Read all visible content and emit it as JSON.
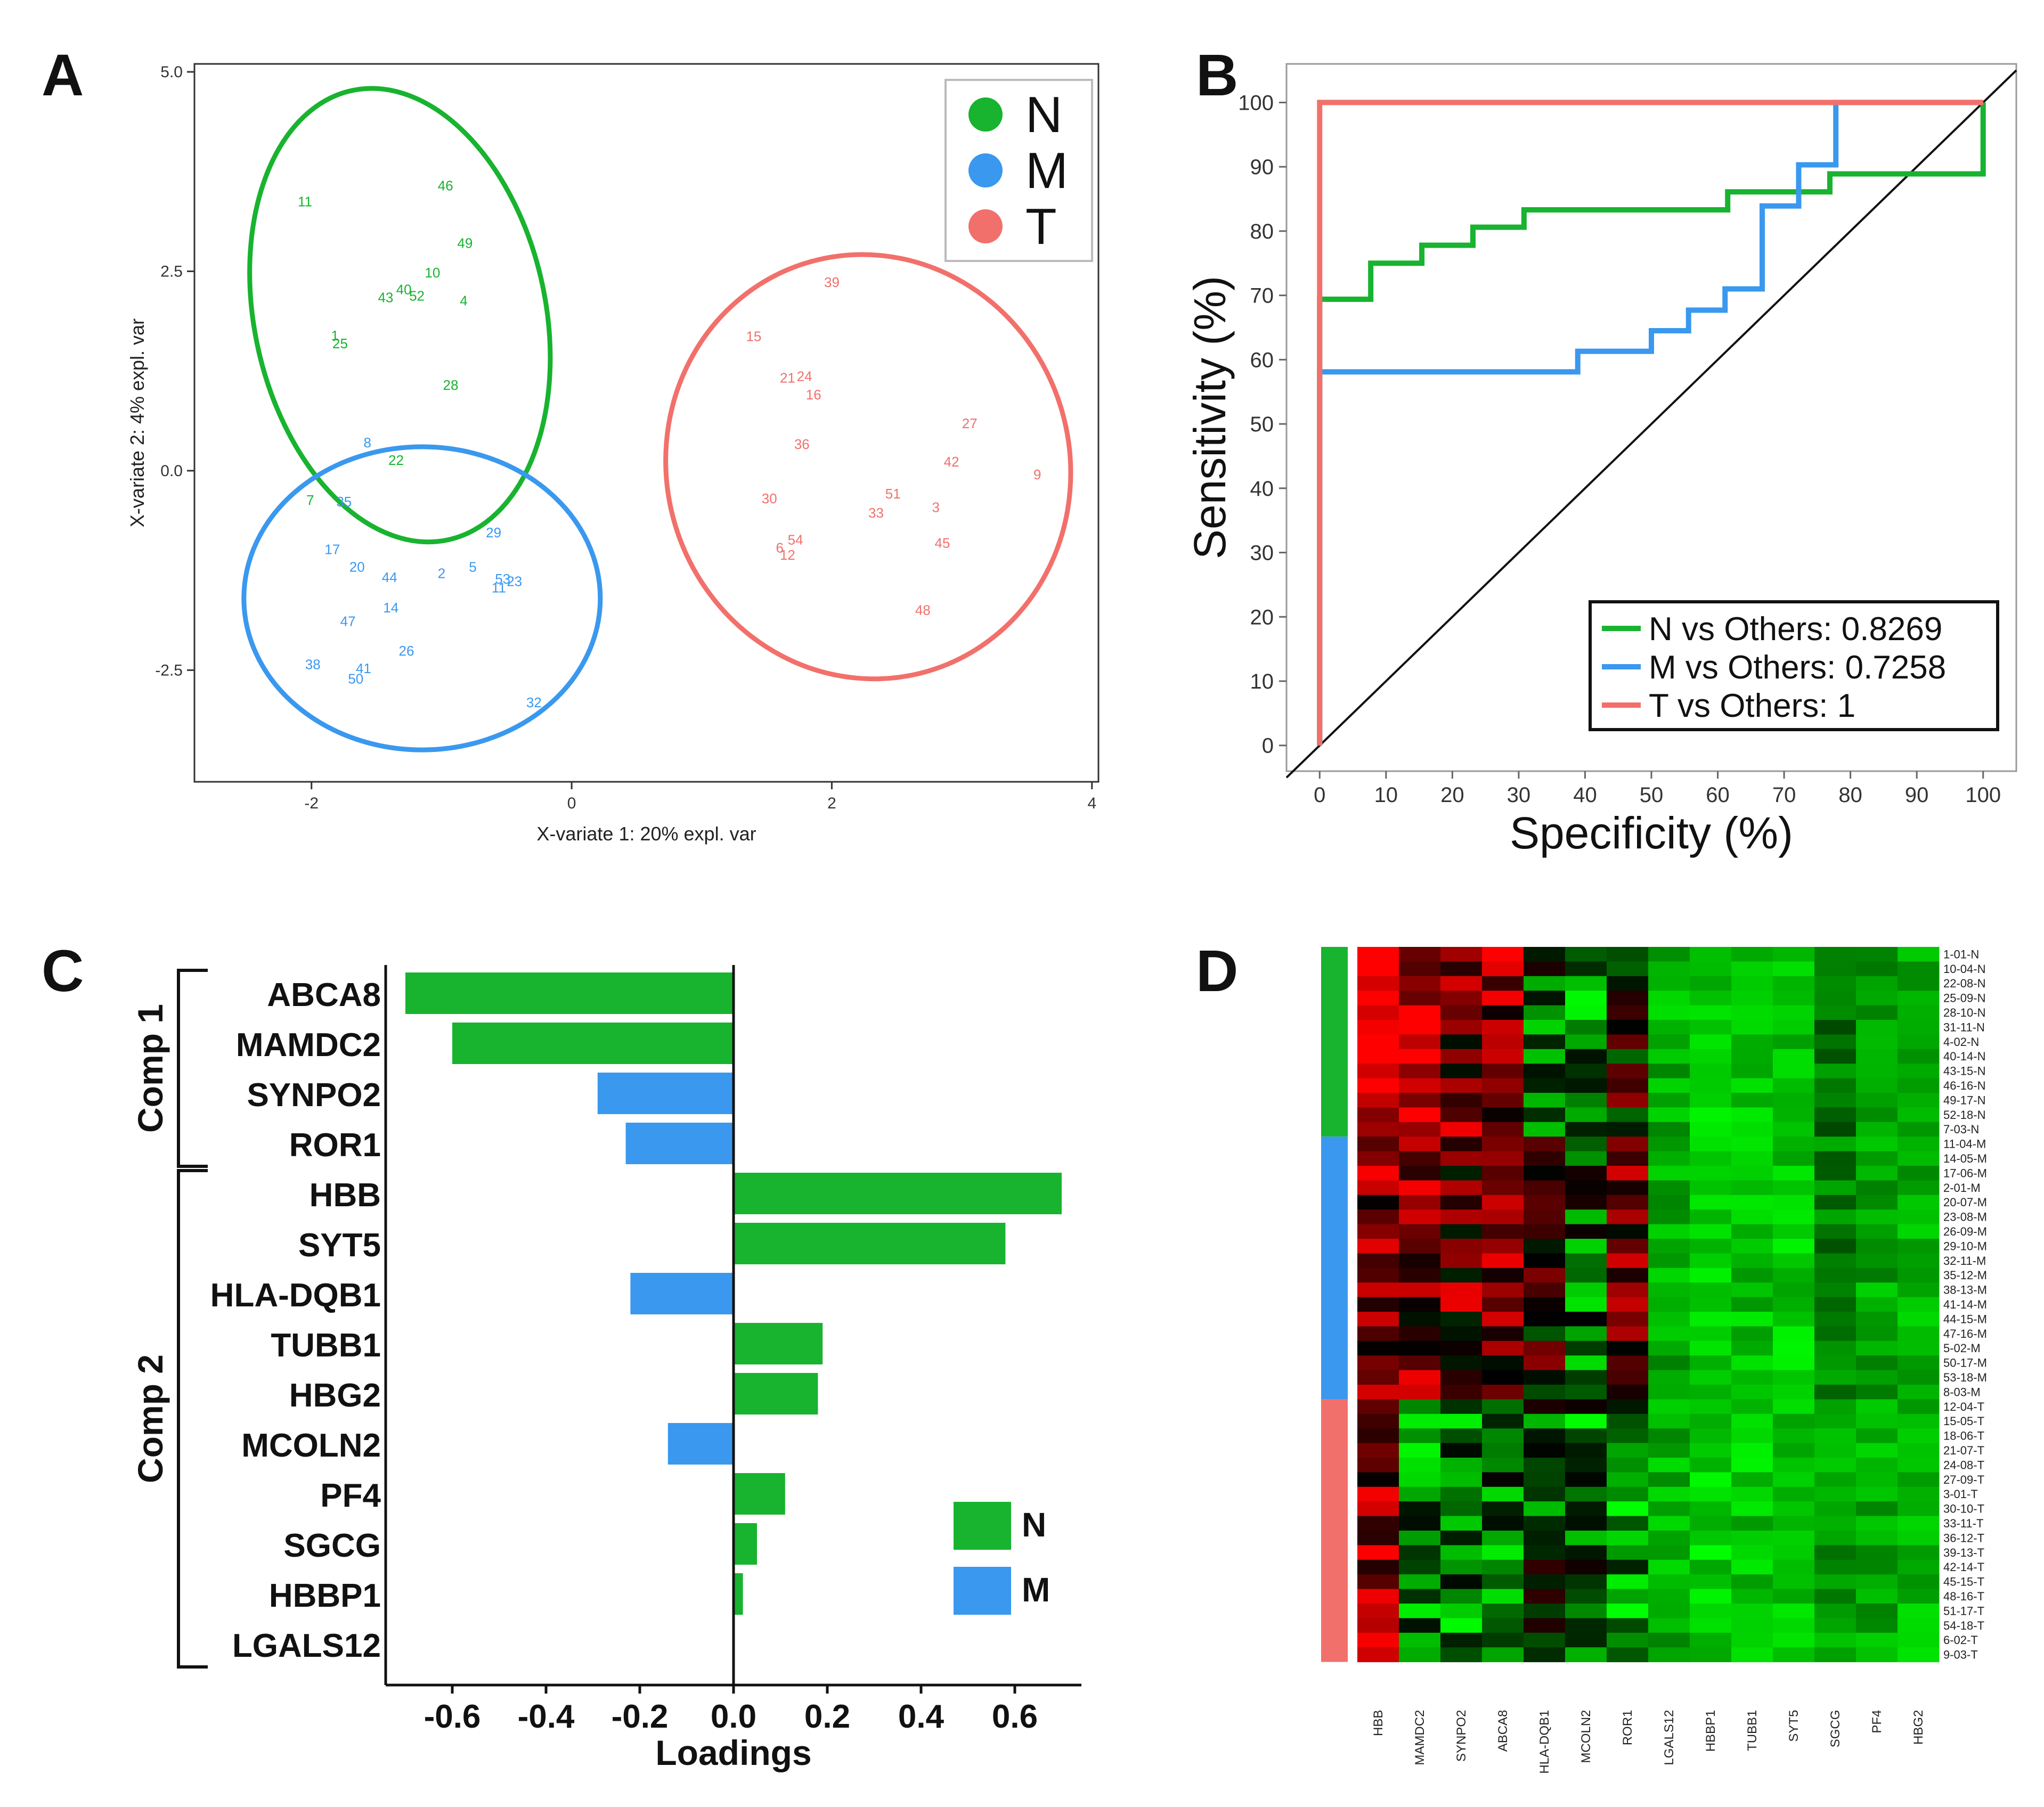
{
  "panels": {
    "a": "A",
    "b": "B",
    "c": "C",
    "d": "D"
  },
  "chart_data": [
    {
      "type": "scatter",
      "panel": "A",
      "xlabel": "X-variate 1: 20% expl. var",
      "ylabel": "X-variate 2: 4% expl. var",
      "xlim": [
        -2.9,
        4.05
      ],
      "ylim": [
        -3.9,
        5.1
      ],
      "xticks": [
        "-2",
        "0",
        "2",
        "4"
      ],
      "yticks": [
        "-2.5",
        "0.0",
        "2.5",
        "5.0"
      ],
      "legend": [
        {
          "label": "N",
          "color": "#18b32f"
        },
        {
          "label": "M",
          "color": "#3a98ef"
        },
        {
          "label": "T",
          "color": "#f2706b"
        }
      ],
      "ellipses": [
        {
          "group": "N",
          "cx": -1.32,
          "cy": 1.95,
          "rx": 1.12,
          "ry": 2.88,
          "angle": -12
        },
        {
          "group": "M",
          "cx": -1.15,
          "cy": -1.6,
          "rx": 1.37,
          "ry": 1.9,
          "angle": 0
        },
        {
          "group": "T",
          "cx": 2.28,
          "cy": 0.05,
          "rx": 1.55,
          "ry": 2.67,
          "angle": -16
        }
      ],
      "points": [
        {
          "label": "11",
          "x": -2.05,
          "y": 3.38,
          "group": "N"
        },
        {
          "label": "46",
          "x": -0.97,
          "y": 3.58,
          "group": "N"
        },
        {
          "label": "49",
          "x": -0.82,
          "y": 2.86,
          "group": "N"
        },
        {
          "label": "10",
          "x": -1.07,
          "y": 2.49,
          "group": "N"
        },
        {
          "label": "40",
          "x": -1.29,
          "y": 2.28,
          "group": "N"
        },
        {
          "label": "52",
          "x": -1.19,
          "y": 2.2,
          "group": "N"
        },
        {
          "label": "43",
          "x": -1.43,
          "y": 2.18,
          "group": "N"
        },
        {
          "label": "4",
          "x": -0.83,
          "y": 2.14,
          "group": "N"
        },
        {
          "label": "1",
          "x": -1.82,
          "y": 1.7,
          "group": "N"
        },
        {
          "label": "25",
          "x": -1.78,
          "y": 1.6,
          "group": "N"
        },
        {
          "label": "28",
          "x": -0.93,
          "y": 1.08,
          "group": "N"
        },
        {
          "label": "22",
          "x": -1.35,
          "y": 0.14,
          "group": "N"
        },
        {
          "label": "7",
          "x": -2.01,
          "y": -0.36,
          "group": "N"
        },
        {
          "label": "8",
          "x": -1.57,
          "y": 0.36,
          "group": "M"
        },
        {
          "label": "35",
          "x": -1.75,
          "y": -0.38,
          "group": "M"
        },
        {
          "label": "17",
          "x": -1.84,
          "y": -0.98,
          "group": "M"
        },
        {
          "label": "29",
          "x": -0.6,
          "y": -0.77,
          "group": "M"
        },
        {
          "label": "20",
          "x": -1.65,
          "y": -1.2,
          "group": "M"
        },
        {
          "label": "44",
          "x": -1.4,
          "y": -1.33,
          "group": "M"
        },
        {
          "label": "2",
          "x": -1.0,
          "y": -1.28,
          "group": "M"
        },
        {
          "label": "5",
          "x": -0.76,
          "y": -1.2,
          "group": "M"
        },
        {
          "label": "53",
          "x": -0.53,
          "y": -1.35,
          "group": "M"
        },
        {
          "label": "23",
          "x": -0.44,
          "y": -1.38,
          "group": "M"
        },
        {
          "label": "11",
          "x": -0.56,
          "y": -1.46,
          "group": "M"
        },
        {
          "label": "14",
          "x": -1.39,
          "y": -1.71,
          "group": "M"
        },
        {
          "label": "47",
          "x": -1.72,
          "y": -1.88,
          "group": "M"
        },
        {
          "label": "26",
          "x": -1.27,
          "y": -2.25,
          "group": "M"
        },
        {
          "label": "38",
          "x": -1.99,
          "y": -2.42,
          "group": "M"
        },
        {
          "label": "41",
          "x": -1.6,
          "y": -2.47,
          "group": "M"
        },
        {
          "label": "50",
          "x": -1.66,
          "y": -2.6,
          "group": "M"
        },
        {
          "label": "32",
          "x": -0.29,
          "y": -2.9,
          "group": "M"
        },
        {
          "label": "39",
          "x": 2.0,
          "y": 2.37,
          "group": "T"
        },
        {
          "label": "15",
          "x": 1.4,
          "y": 1.69,
          "group": "T"
        },
        {
          "label": "21",
          "x": 1.66,
          "y": 1.17,
          "group": "T"
        },
        {
          "label": "24",
          "x": 1.79,
          "y": 1.19,
          "group": "T"
        },
        {
          "label": "16",
          "x": 1.86,
          "y": 0.96,
          "group": "T"
        },
        {
          "label": "27",
          "x": 3.06,
          "y": 0.6,
          "group": "T"
        },
        {
          "label": "36",
          "x": 1.77,
          "y": 0.34,
          "group": "T"
        },
        {
          "label": "42",
          "x": 2.92,
          "y": 0.12,
          "group": "T"
        },
        {
          "label": "9",
          "x": 3.58,
          "y": -0.04,
          "group": "T"
        },
        {
          "label": "51",
          "x": 2.47,
          "y": -0.28,
          "group": "T"
        },
        {
          "label": "30",
          "x": 1.52,
          "y": -0.34,
          "group": "T"
        },
        {
          "label": "3",
          "x": 2.8,
          "y": -0.45,
          "group": "T"
        },
        {
          "label": "33",
          "x": 2.34,
          "y": -0.52,
          "group": "T"
        },
        {
          "label": "45",
          "x": 2.85,
          "y": -0.9,
          "group": "T"
        },
        {
          "label": "54",
          "x": 1.72,
          "y": -0.86,
          "group": "T"
        },
        {
          "label": "6",
          "x": 1.6,
          "y": -0.96,
          "group": "T"
        },
        {
          "label": "12",
          "x": 1.66,
          "y": -1.05,
          "group": "T"
        },
        {
          "label": "48",
          "x": 2.7,
          "y": -1.74,
          "group": "T"
        }
      ]
    },
    {
      "type": "line",
      "panel": "B",
      "xlabel": "Specificity (%)",
      "ylabel": "Sensitivity (%)",
      "xlim": [
        -5,
        105
      ],
      "ylim": [
        -4,
        106
      ],
      "xticks": [
        "0",
        "10",
        "20",
        "30",
        "40",
        "50",
        "60",
        "70",
        "80",
        "90",
        "100"
      ],
      "yticks": [
        "0",
        "10",
        "20",
        "30",
        "40",
        "50",
        "60",
        "70",
        "80",
        "90",
        "100"
      ],
      "series": [
        {
          "name": "N vs Others: 0.8269",
          "color": "#18b32f",
          "x": [
            0,
            0,
            7.7,
            7.7,
            15.4,
            15.4,
            23.1,
            23.1,
            30.8,
            30.8,
            61.5,
            61.5,
            76.9,
            76.9,
            100,
            100
          ],
          "y": [
            0,
            69.4,
            69.4,
            75,
            75,
            77.8,
            77.8,
            80.6,
            80.6,
            83.3,
            83.3,
            86.1,
            86.1,
            88.9,
            88.9,
            100
          ]
        },
        {
          "name": "M vs Others: 0.7258",
          "color": "#3a98ef",
          "x": [
            0,
            0,
            38.9,
            38.9,
            50,
            50,
            55.6,
            55.6,
            61.1,
            61.1,
            66.7,
            66.7,
            72.2,
            72.2,
            77.8,
            77.8,
            100
          ],
          "y": [
            0,
            58.1,
            58.1,
            61.3,
            61.3,
            64.5,
            64.5,
            67.7,
            67.7,
            71,
            71,
            83.9,
            83.9,
            90.3,
            90.3,
            100,
            100
          ]
        },
        {
          "name": "T vs Others: 1",
          "color": "#f2706b",
          "x": [
            0,
            0,
            100
          ],
          "y": [
            0,
            100,
            100
          ]
        }
      ]
    },
    {
      "type": "bar",
      "panel": "C",
      "orientation": "horizontal",
      "xlabel": "Loadings",
      "xlim": [
        -0.78,
        0.78
      ],
      "xticks": [
        "-0.6",
        "-0.4",
        "-0.2",
        "0.0",
        "0.2",
        "0.4",
        "0.6"
      ],
      "groups": [
        {
          "label": "Comp 1",
          "start": 0,
          "end": 3
        },
        {
          "label": "Comp 2",
          "start": 4,
          "end": 13
        }
      ],
      "legend": [
        {
          "label": "N",
          "color": "#18b32f"
        },
        {
          "label": "M",
          "color": "#3a98ef"
        }
      ],
      "categories": [
        "ABCA8",
        "MAMDC2",
        "SYNPO2",
        "ROR1",
        "HBB",
        "SYT5",
        "HLA-DQB1",
        "TUBB1",
        "HBG2",
        "MCOLN2",
        "PF4",
        "SGCG",
        "HBBP1",
        "LGALS12"
      ],
      "values": [
        -0.7,
        -0.6,
        -0.29,
        -0.23,
        0.7,
        0.58,
        -0.22,
        0.19,
        0.18,
        -0.14,
        0.11,
        0.05,
        0.02,
        0.0
      ],
      "groups_of_bars": [
        "N",
        "N",
        "M",
        "M",
        "N",
        "N",
        "M",
        "N",
        "N",
        "M",
        "N",
        "N",
        "N",
        "N"
      ]
    },
    {
      "type": "heatmap",
      "panel": "D",
      "columns": [
        "HBB",
        "MAMDC2",
        "SYNPO2",
        "ABCA8",
        "HLA-DQB1",
        "MCOLN2",
        "ROR1",
        "LGALS12",
        "HBBP1",
        "TUBB1",
        "SYT5",
        "SGCG",
        "PF4",
        "HBG2"
      ],
      "rows": [
        "1-01-N",
        "10-04-N",
        "22-08-N",
        "25-09-N",
        "28-10-N",
        "31-11-N",
        "4-02-N",
        "40-14-N",
        "43-15-N",
        "46-16-N",
        "49-17-N",
        "52-18-N",
        "7-03-N",
        "11-04-M",
        "14-05-M",
        "17-06-M",
        "2-01-M",
        "20-07-M",
        "23-08-M",
        "26-09-M",
        "29-10-M",
        "32-11-M",
        "35-12-M",
        "38-13-M",
        "41-14-M",
        "44-15-M",
        "47-16-M",
        "5-02-M",
        "50-17-M",
        "53-18-M",
        "8-03-M",
        "12-04-T",
        "15-05-T",
        "18-06-T",
        "21-07-T",
        "24-08-T",
        "27-09-T",
        "3-01-T",
        "30-10-T",
        "33-11-T",
        "36-12-T",
        "39-13-T",
        "42-14-T",
        "45-15-T",
        "48-16-T",
        "51-17-T",
        "54-18-T",
        "6-02-T",
        "9-03-T"
      ],
      "row_groups": [
        {
          "label": "N",
          "count": 13,
          "color": "#18b32f"
        },
        {
          "label": "M",
          "count": 18,
          "color": "#3a98ef"
        },
        {
          "label": "T",
          "count": 18,
          "color": "#f2706b"
        }
      ],
      "color_scale": {
        "low": "#00ff00",
        "mid": "#000000",
        "high": "#ff0000",
        "range": [
          -1,
          1
        ]
      },
      "column_profiles": {
        "N": [
          0.92,
          0.62,
          0.48,
          0.58,
          -0.3,
          -0.55,
          0.05,
          -0.7,
          -0.82,
          -0.78,
          -0.8,
          -0.45,
          -0.62,
          -0.68
        ],
        "M": [
          0.55,
          0.42,
          0.38,
          0.45,
          0.1,
          -0.4,
          0.3,
          -0.66,
          -0.8,
          -0.77,
          -0.79,
          -0.5,
          -0.65,
          -0.7
        ],
        "T": [
          0.5,
          -0.45,
          -0.55,
          -0.5,
          -0.35,
          -0.45,
          -0.6,
          -0.68,
          -0.82,
          -0.78,
          -0.8,
          -0.62,
          -0.66,
          -0.72
        ]
      }
    }
  ]
}
